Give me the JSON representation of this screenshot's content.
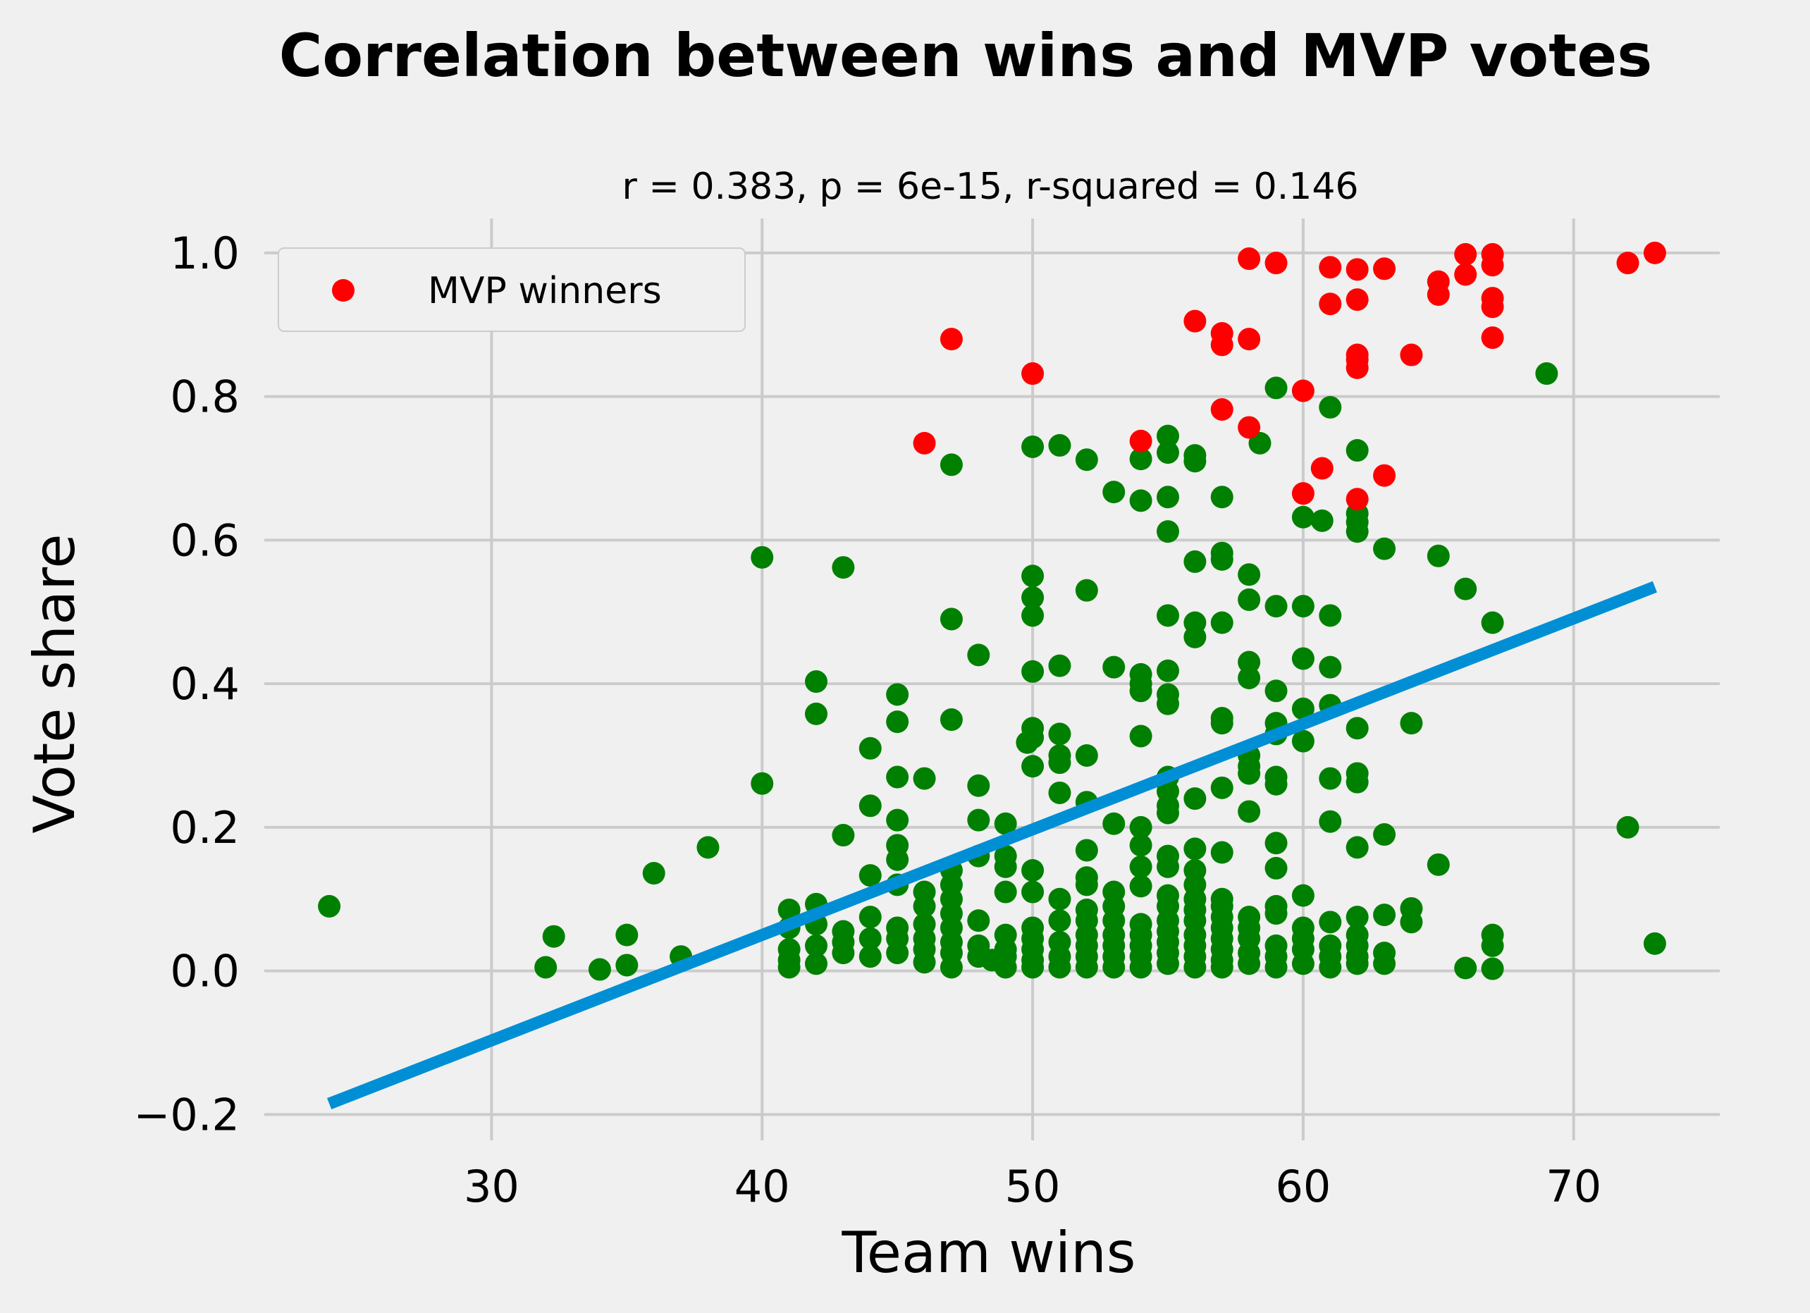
{
  "chart_data": {
    "type": "scatter",
    "title": "Correlation between wins and MVP votes",
    "subtitle": "r = 0.383, p = 6e-15, r-squared = 0.146",
    "xlabel": "Team wins",
    "ylabel": "Vote share",
    "xlim": [
      21.6,
      75.4
    ],
    "ylim": [
      -0.236,
      1.048
    ],
    "xticks": [
      30,
      40,
      50,
      60,
      70
    ],
    "xtick_labels": [
      "30",
      "40",
      "50",
      "60",
      "70"
    ],
    "yticks": [
      -0.2,
      0.0,
      0.2,
      0.4,
      0.6,
      0.8,
      1.0
    ],
    "ytick_labels": [
      "−0.2",
      "0.0",
      "0.2",
      "0.4",
      "0.6",
      "0.8",
      "1.0"
    ],
    "grid": true,
    "legend": {
      "position": "top-left",
      "entries": [
        "MVP winners"
      ]
    },
    "colors": {
      "background": "#f0f0f0",
      "grid": "#cbcbcb",
      "mvp_winners": "#ff0000",
      "others": "#008000",
      "fit_line": "#008fd5"
    },
    "series": [
      {
        "name": "MVP winners",
        "color": "#ff0000",
        "points": [
          [
            46,
            0.735
          ],
          [
            47,
            0.88
          ],
          [
            50,
            0.832
          ],
          [
            54,
            0.738
          ],
          [
            56,
            0.905
          ],
          [
            57,
            0.888
          ],
          [
            57,
            0.872
          ],
          [
            57,
            0.782
          ],
          [
            58,
            0.992
          ],
          [
            58,
            0.88
          ],
          [
            58,
            0.757
          ],
          [
            59,
            0.986
          ],
          [
            60,
            0.808
          ],
          [
            60,
            0.665
          ],
          [
            60.7,
            0.7
          ],
          [
            61,
            0.98
          ],
          [
            61,
            0.929
          ],
          [
            62,
            0.977
          ],
          [
            62,
            0.935
          ],
          [
            62,
            0.858
          ],
          [
            62,
            0.851
          ],
          [
            62,
            0.84
          ],
          [
            62,
            0.657
          ],
          [
            63,
            0.978
          ],
          [
            63,
            0.69
          ],
          [
            64,
            0.858
          ],
          [
            65,
            0.96
          ],
          [
            65,
            0.942
          ],
          [
            66,
            0.998
          ],
          [
            66,
            0.97
          ],
          [
            67,
            0.998
          ],
          [
            67,
            0.983
          ],
          [
            67,
            0.937
          ],
          [
            67,
            0.925
          ],
          [
            67,
            0.882
          ],
          [
            72,
            0.986
          ],
          [
            73,
            1.0
          ]
        ]
      },
      {
        "color": "#008000",
        "points": [
          [
            24,
            0.09
          ],
          [
            32,
            0.005
          ],
          [
            32.3,
            0.048
          ],
          [
            34,
            0.002
          ],
          [
            35,
            0.05
          ],
          [
            35,
            0.008
          ],
          [
            36,
            0.136
          ],
          [
            37,
            0.02
          ],
          [
            38,
            0.172
          ],
          [
            40,
            0.576
          ],
          [
            40,
            0.261
          ],
          [
            41,
            0.085
          ],
          [
            41,
            0.06
          ],
          [
            41,
            0.03
          ],
          [
            41,
            0.015
          ],
          [
            41,
            0.005
          ],
          [
            42,
            0.403
          ],
          [
            42,
            0.358
          ],
          [
            42,
            0.093
          ],
          [
            42,
            0.065
          ],
          [
            42,
            0.035
          ],
          [
            42,
            0.01
          ],
          [
            43,
            0.562
          ],
          [
            43,
            0.189
          ],
          [
            43,
            0.055
          ],
          [
            43,
            0.04
          ],
          [
            43,
            0.025
          ],
          [
            44,
            0.31
          ],
          [
            44,
            0.23
          ],
          [
            44,
            0.133
          ],
          [
            44,
            0.075
          ],
          [
            44,
            0.045
          ],
          [
            44,
            0.02
          ],
          [
            45,
            0.385
          ],
          [
            45,
            0.347
          ],
          [
            45,
            0.27
          ],
          [
            45,
            0.21
          ],
          [
            45,
            0.175
          ],
          [
            45,
            0.155
          ],
          [
            45,
            0.12
          ],
          [
            45,
            0.06
          ],
          [
            45,
            0.045
          ],
          [
            45,
            0.025
          ],
          [
            46,
            0.268
          ],
          [
            46,
            0.11
          ],
          [
            46,
            0.09
          ],
          [
            46,
            0.065
          ],
          [
            46,
            0.045
          ],
          [
            46,
            0.03
          ],
          [
            46,
            0.012
          ],
          [
            47,
            0.705
          ],
          [
            47,
            0.49
          ],
          [
            47,
            0.35
          ],
          [
            47,
            0.14
          ],
          [
            47,
            0.12
          ],
          [
            47,
            0.1
          ],
          [
            47,
            0.08
          ],
          [
            47,
            0.06
          ],
          [
            47,
            0.04
          ],
          [
            47,
            0.025
          ],
          [
            47,
            0.005
          ],
          [
            48,
            0.44
          ],
          [
            48,
            0.258
          ],
          [
            48,
            0.21
          ],
          [
            48,
            0.16
          ],
          [
            48,
            0.07
          ],
          [
            48,
            0.035
          ],
          [
            48,
            0.02
          ],
          [
            48.5,
            0.015
          ],
          [
            49,
            0.205
          ],
          [
            49,
            0.16
          ],
          [
            49,
            0.145
          ],
          [
            49,
            0.11
          ],
          [
            49,
            0.05
          ],
          [
            49,
            0.03
          ],
          [
            49,
            0.02
          ],
          [
            49,
            0.005
          ],
          [
            49.8,
            0.318
          ],
          [
            50,
            0.73
          ],
          [
            50,
            0.55
          ],
          [
            50,
            0.52
          ],
          [
            50,
            0.495
          ],
          [
            50,
            0.417
          ],
          [
            50,
            0.338
          ],
          [
            50,
            0.325
          ],
          [
            50,
            0.285
          ],
          [
            50,
            0.14
          ],
          [
            50,
            0.11
          ],
          [
            50,
            0.06
          ],
          [
            50,
            0.045
          ],
          [
            50,
            0.03
          ],
          [
            50,
            0.015
          ],
          [
            50,
            0.005
          ],
          [
            51,
            0.732
          ],
          [
            51,
            0.425
          ],
          [
            51,
            0.33
          ],
          [
            51,
            0.3
          ],
          [
            51,
            0.29
          ],
          [
            51,
            0.248
          ],
          [
            51,
            0.1
          ],
          [
            51,
            0.07
          ],
          [
            51,
            0.04
          ],
          [
            51,
            0.02
          ],
          [
            51,
            0.005
          ],
          [
            52,
            0.712
          ],
          [
            52,
            0.53
          ],
          [
            52,
            0.3
          ],
          [
            52,
            0.235
          ],
          [
            52,
            0.168
          ],
          [
            52,
            0.13
          ],
          [
            52,
            0.12
          ],
          [
            52,
            0.085
          ],
          [
            52,
            0.07
          ],
          [
            52,
            0.05
          ],
          [
            52,
            0.035
          ],
          [
            52,
            0.02
          ],
          [
            52,
            0.005
          ],
          [
            53,
            0.667
          ],
          [
            53,
            0.423
          ],
          [
            53,
            0.205
          ],
          [
            53,
            0.11
          ],
          [
            53,
            0.09
          ],
          [
            53,
            0.07
          ],
          [
            53,
            0.05
          ],
          [
            53,
            0.035
          ],
          [
            53,
            0.02
          ],
          [
            53,
            0.005
          ],
          [
            54,
            0.713
          ],
          [
            54,
            0.655
          ],
          [
            54,
            0.413
          ],
          [
            54,
            0.4
          ],
          [
            54,
            0.39
          ],
          [
            54,
            0.327
          ],
          [
            54,
            0.2
          ],
          [
            54,
            0.175
          ],
          [
            54,
            0.145
          ],
          [
            54,
            0.118
          ],
          [
            54,
            0.065
          ],
          [
            54,
            0.05
          ],
          [
            54,
            0.035
          ],
          [
            54,
            0.02
          ],
          [
            54,
            0.005
          ],
          [
            55,
            0.745
          ],
          [
            55,
            0.722
          ],
          [
            55,
            0.66
          ],
          [
            55,
            0.612
          ],
          [
            55,
            0.495
          ],
          [
            55,
            0.418
          ],
          [
            55,
            0.385
          ],
          [
            55,
            0.372
          ],
          [
            55,
            0.27
          ],
          [
            55,
            0.25
          ],
          [
            55,
            0.23
          ],
          [
            55,
            0.22
          ],
          [
            55,
            0.16
          ],
          [
            55,
            0.145
          ],
          [
            55,
            0.105
          ],
          [
            55,
            0.09
          ],
          [
            55,
            0.07
          ],
          [
            55,
            0.055
          ],
          [
            55,
            0.04
          ],
          [
            55,
            0.025
          ],
          [
            55,
            0.01
          ],
          [
            56,
            0.718
          ],
          [
            56,
            0.71
          ],
          [
            56,
            0.57
          ],
          [
            56,
            0.485
          ],
          [
            56,
            0.465
          ],
          [
            56,
            0.24
          ],
          [
            56,
            0.17
          ],
          [
            56,
            0.14
          ],
          [
            56,
            0.12
          ],
          [
            56,
            0.1
          ],
          [
            56,
            0.085
          ],
          [
            56,
            0.07
          ],
          [
            56,
            0.05
          ],
          [
            56,
            0.035
          ],
          [
            56,
            0.02
          ],
          [
            56,
            0.005
          ],
          [
            57,
            0.66
          ],
          [
            57,
            0.582
          ],
          [
            57,
            0.573
          ],
          [
            57,
            0.485
          ],
          [
            57,
            0.352
          ],
          [
            57,
            0.345
          ],
          [
            57,
            0.255
          ],
          [
            57,
            0.165
          ],
          [
            57,
            0.1
          ],
          [
            57,
            0.09
          ],
          [
            57,
            0.075
          ],
          [
            57,
            0.06
          ],
          [
            57,
            0.045
          ],
          [
            57,
            0.03
          ],
          [
            57,
            0.015
          ],
          [
            57,
            0.005
          ],
          [
            58,
            0.552
          ],
          [
            58,
            0.517
          ],
          [
            58,
            0.43
          ],
          [
            58,
            0.408
          ],
          [
            58,
            0.3
          ],
          [
            58,
            0.285
          ],
          [
            58,
            0.275
          ],
          [
            58,
            0.222
          ],
          [
            58,
            0.075
          ],
          [
            58,
            0.06
          ],
          [
            58,
            0.045
          ],
          [
            58,
            0.025
          ],
          [
            58,
            0.01
          ],
          [
            58.4,
            0.735
          ],
          [
            59,
            0.812
          ],
          [
            59,
            0.508
          ],
          [
            59,
            0.39
          ],
          [
            59,
            0.345
          ],
          [
            59,
            0.33
          ],
          [
            59,
            0.27
          ],
          [
            59,
            0.26
          ],
          [
            59,
            0.178
          ],
          [
            59,
            0.143
          ],
          [
            59,
            0.09
          ],
          [
            59,
            0.08
          ],
          [
            59,
            0.035
          ],
          [
            59,
            0.02
          ],
          [
            59,
            0.005
          ],
          [
            60,
            0.632
          ],
          [
            60,
            0.508
          ],
          [
            60,
            0.435
          ],
          [
            60,
            0.365
          ],
          [
            60,
            0.32
          ],
          [
            60,
            0.105
          ],
          [
            60,
            0.06
          ],
          [
            60,
            0.045
          ],
          [
            60,
            0.03
          ],
          [
            60,
            0.01
          ],
          [
            60.7,
            0.627
          ],
          [
            61,
            0.785
          ],
          [
            61,
            0.495
          ],
          [
            61,
            0.423
          ],
          [
            61,
            0.37
          ],
          [
            61,
            0.268
          ],
          [
            61,
            0.208
          ],
          [
            61,
            0.068
          ],
          [
            61,
            0.035
          ],
          [
            61,
            0.02
          ],
          [
            61,
            0.005
          ],
          [
            62,
            0.725
          ],
          [
            62,
            0.637
          ],
          [
            62,
            0.625
          ],
          [
            62,
            0.612
          ],
          [
            62,
            0.338
          ],
          [
            62,
            0.275
          ],
          [
            62,
            0.263
          ],
          [
            62,
            0.172
          ],
          [
            62,
            0.075
          ],
          [
            62,
            0.05
          ],
          [
            62,
            0.035
          ],
          [
            62,
            0.02
          ],
          [
            62,
            0.01
          ],
          [
            63,
            0.588
          ],
          [
            63,
            0.19
          ],
          [
            63,
            0.078
          ],
          [
            63,
            0.025
          ],
          [
            63,
            0.01
          ],
          [
            64,
            0.345
          ],
          [
            64,
            0.087
          ],
          [
            64,
            0.068
          ],
          [
            65,
            0.578
          ],
          [
            65,
            0.148
          ],
          [
            66,
            0.532
          ],
          [
            66,
            0.004
          ],
          [
            67,
            0.485
          ],
          [
            67,
            0.05
          ],
          [
            67,
            0.035
          ],
          [
            67,
            0.003
          ],
          [
            69,
            0.832
          ],
          [
            72,
            0.2
          ],
          [
            73,
            0.038
          ]
        ]
      }
    ],
    "fit_line": {
      "x": [
        24,
        73
      ],
      "y": [
        -0.185,
        0.535
      ]
    }
  }
}
